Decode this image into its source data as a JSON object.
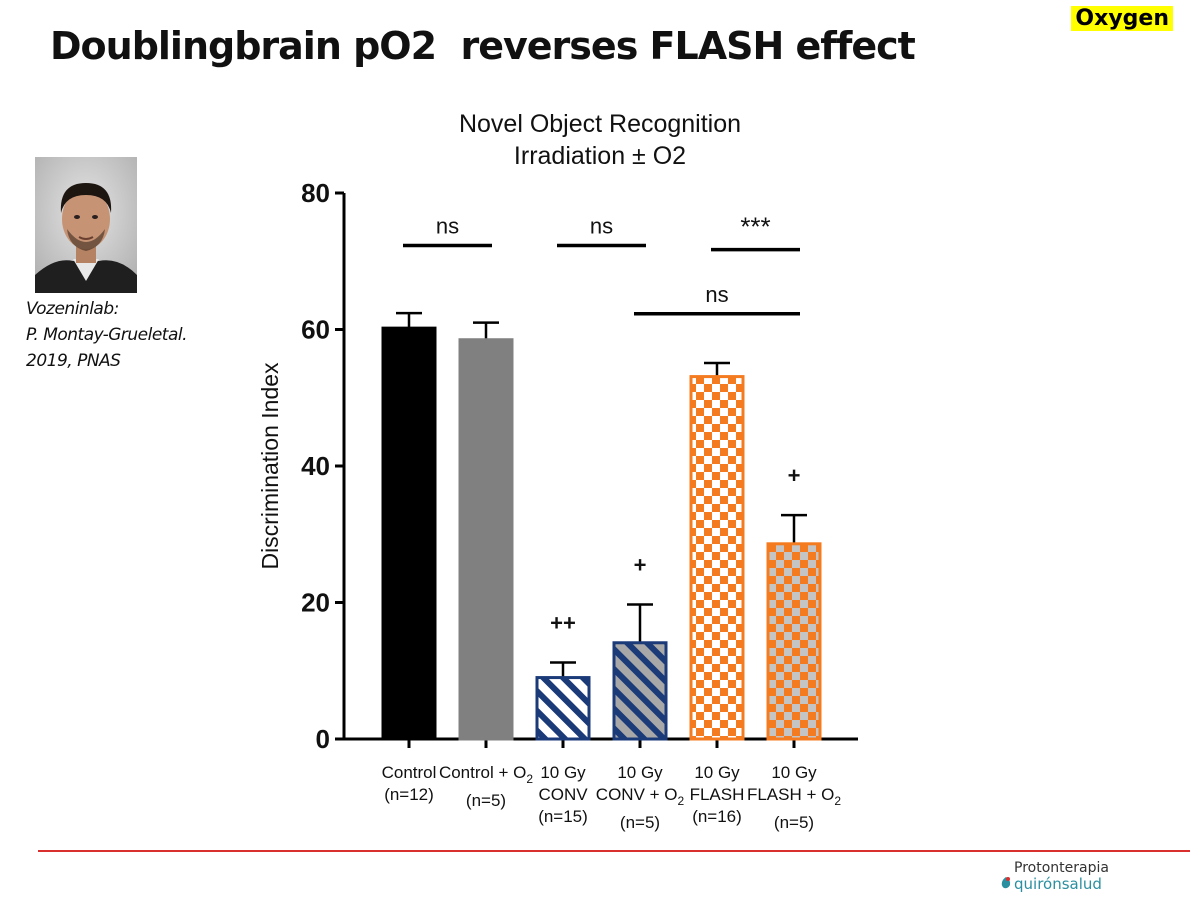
{
  "slide": {
    "title": "Doublingbrain pO2  reverses FLASH effect",
    "tag": "Oxygen",
    "caption": [
      "Vozeninlab:",
      "P. Montay-Grueletal.",
      "2019, PNAS"
    ]
  },
  "logo": {
    "line1": "Protonterapia",
    "line2": "quirónsalud"
  },
  "chart_data": {
    "type": "bar",
    "title_lines": [
      "Novel Object Recognition",
      "Irradiation ± O2"
    ],
    "ylabel": "Discrimination Index",
    "ylim": [
      0,
      80
    ],
    "yticks": [
      0,
      20,
      40,
      60,
      80
    ],
    "grid": false,
    "categories": [
      {
        "lines": [
          "Control",
          "(n=12)"
        ]
      },
      {
        "lines": [
          "Control + O",
          "(n=5)"
        ],
        "subscript": "2"
      },
      {
        "lines": [
          "10 Gy",
          "CONV",
          "(n=15)"
        ]
      },
      {
        "lines": [
          "10 Gy",
          "CONV + O",
          "(n=5)"
        ],
        "subscript": "2"
      },
      {
        "lines": [
          "10 Gy",
          "FLASH",
          "(n=16)"
        ]
      },
      {
        "lines": [
          "10 Gy",
          "FLASH + O",
          "(n=5)"
        ],
        "subscript": "2"
      }
    ],
    "values": [
      60.2,
      58.5,
      9.0,
      14.1,
      53.1,
      28.6
    ],
    "errors": [
      2.2,
      2.5,
      2.2,
      5.6,
      2.0,
      4.2
    ],
    "styles": [
      "solid-black",
      "solid-gray",
      "hatch-white",
      "hatch-gray",
      "check-white",
      "check-gray"
    ],
    "colors": {
      "black": "#000000",
      "gray": "#808080",
      "navy": "#1b3a78",
      "hatch_gray": "#a8a8a8",
      "orange": "#f47b20",
      "check_gray": "#c4c4c4"
    },
    "bar_annotations": [
      {
        "bar": 2,
        "text": "++"
      },
      {
        "bar": 3,
        "text": "+"
      },
      {
        "bar": 5,
        "text": "+"
      }
    ],
    "comparisons": [
      {
        "from": 0,
        "to": 1,
        "y": 72.3,
        "label": "ns"
      },
      {
        "from": 2,
        "to": 3,
        "y": 72.3,
        "label": "ns"
      },
      {
        "from": 4,
        "to": 5,
        "y": 71.7,
        "label": "***"
      },
      {
        "from": 3,
        "to": 5,
        "y": 62.3,
        "label": "ns"
      }
    ]
  }
}
